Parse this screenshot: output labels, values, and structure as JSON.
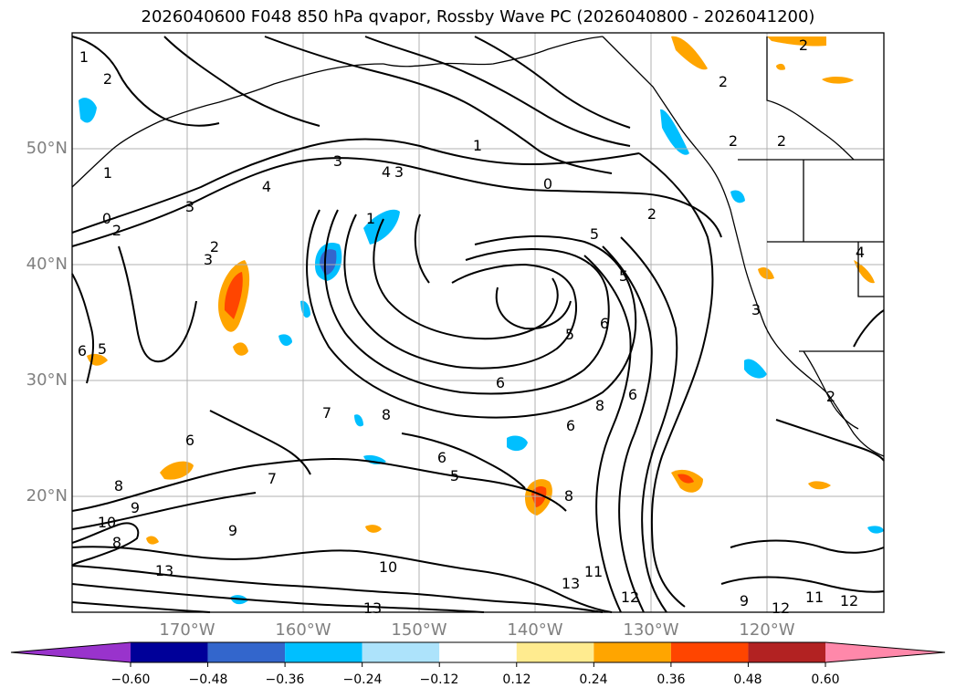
{
  "title": "2026040600 F048 850 hPa qvapor, Rossby Wave PC (2026040800 - 2026041200)",
  "map": {
    "lat_labels": [
      "50°N",
      "40°N",
      "30°N",
      "20°N"
    ],
    "lon_labels": [
      "170°W",
      "160°W",
      "150°W",
      "140°W",
      "130°W",
      "120°W"
    ],
    "contour_labels": [
      "1",
      "2",
      "1",
      "3",
      "0",
      "2",
      "3",
      "2",
      "3",
      "4",
      "4",
      "3",
      "1",
      "1",
      "0",
      "2",
      "5",
      "5",
      "2",
      "2",
      "6",
      "5",
      "6",
      "5",
      "6",
      "6",
      "8",
      "8",
      "7",
      "8",
      "6",
      "9",
      "9",
      "10",
      "8",
      "7",
      "6",
      "5",
      "8",
      "6",
      "13",
      "10",
      "13",
      "11",
      "13",
      "12",
      "12",
      "11",
      "9",
      "12",
      "2",
      "2",
      "4",
      "3",
      "2"
    ]
  },
  "colorbar": {
    "levels": [
      "−0.60",
      "−0.48",
      "−0.36",
      "−0.24",
      "−0.12",
      "0.12",
      "0.24",
      "0.36",
      "0.48",
      "0.60"
    ],
    "colors": [
      "#9933cc",
      "#000099",
      "#3366cc",
      "#00bfff",
      "#ade3fb",
      "#ffffff",
      "#ffeb8f",
      "#ffa500",
      "#ff4500",
      "#b22222",
      "#ff88aa"
    ]
  }
}
